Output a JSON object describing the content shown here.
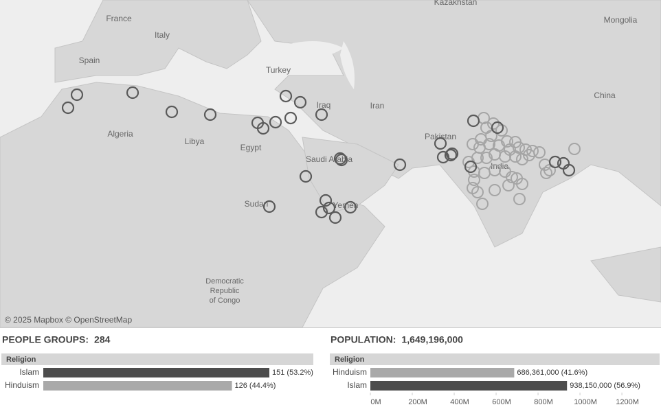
{
  "map": {
    "labels": [
      "Kazakhstan",
      "France",
      "Italy",
      "Spain",
      "Turkey",
      "Mongolia",
      "China",
      "Iran",
      "Iraq",
      "Algeria",
      "Libya",
      "Egypt",
      "Saudi Arabia",
      "Pakistan",
      "India",
      "Sudan",
      "Yemen",
      "Democratic",
      "Republic",
      "of Congo"
    ],
    "attribution": "© 2025 Mapbox © OpenStreetMap"
  },
  "chart_data": [
    {
      "type": "bar",
      "title": "PEOPLE GROUPS:",
      "total": "284",
      "y_label": "Religion",
      "categories": [
        "Islam",
        "Hinduism"
      ],
      "values": [
        151,
        126
      ],
      "value_labels": [
        "151 (53.2%)",
        "126 (44.4%)"
      ],
      "colors": [
        "#4d4d4d",
        "#a9a9a9"
      ]
    },
    {
      "type": "bar",
      "title": "POPULATION:",
      "total": "1,649,196,000",
      "y_label": "Religion",
      "categories": [
        "Hinduism",
        "Islam"
      ],
      "values": [
        686361000,
        938150000
      ],
      "value_labels": [
        "686,361,000 (41.6%)",
        "938,150,000 (56.9%)"
      ],
      "colors": [
        "#a9a9a9",
        "#4d4d4d"
      ],
      "xlim": [
        0,
        1380000000
      ],
      "xticks": [
        {
          "value": 0,
          "label": "0M"
        },
        {
          "value": 200000000,
          "label": "200M"
        },
        {
          "value": 400000000,
          "label": "400M"
        },
        {
          "value": 600000000,
          "label": "600M"
        },
        {
          "value": 800000000,
          "label": "800M"
        },
        {
          "value": 1000000000,
          "label": "1000M"
        },
        {
          "value": 1200000000,
          "label": "1200M"
        }
      ]
    }
  ]
}
